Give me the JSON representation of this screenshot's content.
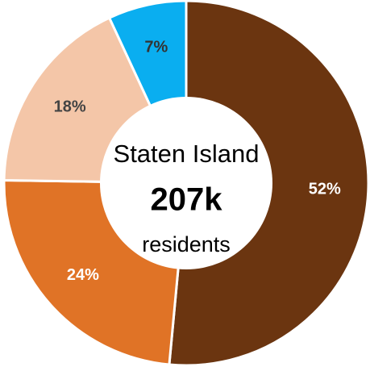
{
  "chart_data": {
    "type": "donut",
    "values": [
      52,
      24,
      18,
      7
    ],
    "value_labels": [
      "52%",
      "24%",
      "18%",
      "7%"
    ],
    "colors": [
      "#6b3510",
      "#e07326",
      "#f4c6a8",
      "#0aaef0"
    ],
    "label_colors": [
      "#ffffff",
      "#ffffff",
      "#444444",
      "#333333"
    ],
    "center_title": "Staten Island",
    "center_value": "207k",
    "center_subtitle": "residents"
  }
}
